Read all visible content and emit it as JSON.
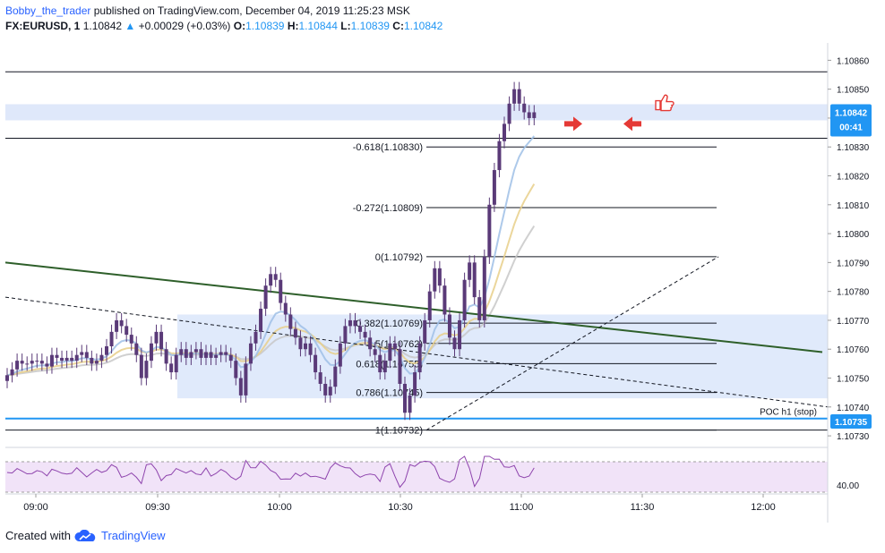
{
  "header": {
    "author": "Bobby_the_trader",
    "published": "published on TradingView.com, December 04, 2019 11:25:23 MSK",
    "symbol": "FX:EURUSD, 1",
    "last": "1.10842",
    "change": "+0.00029 (+0.03%)",
    "open_label": "O:",
    "open": "1.10839",
    "high_label": "H:",
    "high": "1.10844",
    "low_label": "L:",
    "low": "1.10839",
    "close_label": "C:",
    "close": "1.10842"
  },
  "footer": {
    "prefix": "Created with",
    "brand": "TradingView"
  },
  "colors": {
    "candle": "#5a3a78",
    "trendline": "#2e5f2a",
    "fib_zone": "#dbe6fa",
    "ema_gray": "#c8c8c8",
    "ema_yellow": "#e8cf8a",
    "ema_blue": "#9fbfe6",
    "rsi_line": "#8e44ad",
    "rsi_band": "#f1e3f8",
    "price_tag": "#2196f3",
    "arrow": "#e53935"
  },
  "annotations": {
    "price_tag": "1.10842",
    "countdown": "00:41",
    "poc_label": "POC h1 (stop)",
    "poc_price": "1.10735",
    "arrows": [
      "right-arrow",
      "left-arrow"
    ],
    "thumbs_up_icon": "thumbs-up-icon"
  },
  "chart_data": {
    "type": "candlestick",
    "y_ticks": [
      "1.10860",
      "1.10850",
      "1.10840",
      "1.10830",
      "1.10820",
      "1.10810",
      "1.10800",
      "1.10790",
      "1.10780",
      "1.10770",
      "1.10760",
      "1.10750",
      "1.10740",
      "1.10730"
    ],
    "x_ticks": [
      "09:00",
      "09:30",
      "10:00",
      "10:30",
      "11:00",
      "11:30",
      "12:00"
    ],
    "ylim": [
      1.10726,
      1.10866
    ],
    "horizontal_levels": [
      1.10856,
      1.10833,
      1.10732
    ],
    "fib_levels": [
      {
        "label": "-0.618(1.10830)",
        "price": 1.1083
      },
      {
        "label": "-0.272(1.10809)",
        "price": 1.10809
      },
      {
        "label": "0(1.10792)",
        "price": 1.10792
      },
      {
        "label": "0.382(1.10769)",
        "price": 1.10769
      },
      {
        "label": "0.5(1.10762)",
        "price": 1.10762
      },
      {
        "label": "0.618(1.10755)",
        "price": 1.10755
      },
      {
        "label": "0.786(1.10745)",
        "price": 1.10745
      },
      {
        "label": "1(1.10732)",
        "price": 1.10732
      }
    ],
    "close": [
      1.10751,
      1.10753,
      1.10756,
      1.10755,
      1.10755,
      1.10756,
      1.10756,
      1.10755,
      1.10754,
      1.10758,
      1.10757,
      1.10756,
      1.10757,
      1.10756,
      1.10758,
      1.10759,
      1.10757,
      1.10755,
      1.10756,
      1.10758,
      1.10761,
      1.10766,
      1.1077,
      1.10768,
      1.10765,
      1.10762,
      1.10758,
      1.1075,
      1.10756,
      1.10762,
      1.10766,
      1.1076,
      1.10755,
      1.10752,
      1.10758,
      1.1076,
      1.10757,
      1.10759,
      1.1076,
      1.10757,
      1.10759,
      1.10757,
      1.10758,
      1.10759,
      1.10758,
      1.10756,
      1.1075,
      1.10744,
      1.10755,
      1.10762,
      1.10766,
      1.10774,
      1.10782,
      1.10786,
      1.10784,
      1.10776,
      1.10772,
      1.10767,
      1.10764,
      1.1076,
      1.10762,
      1.10758,
      1.10752,
      1.10748,
      1.10744,
      1.10747,
      1.10754,
      1.10762,
      1.10768,
      1.1077,
      1.10768,
      1.10766,
      1.10764,
      1.1076,
      1.10758,
      1.10752,
      1.10756,
      1.10762,
      1.1076,
      1.10748,
      1.10738,
      1.10744,
      1.10752,
      1.10762,
      1.1077,
      1.1078,
      1.10788,
      1.10782,
      1.10772,
      1.10764,
      1.1076,
      1.1077,
      1.10784,
      1.1079,
      1.10778,
      1.1077,
      1.10792,
      1.1081,
      1.10822,
      1.10832,
      1.10838,
      1.10845,
      1.1085,
      1.10845,
      1.10842,
      1.1084,
      1.10842
    ]
  }
}
